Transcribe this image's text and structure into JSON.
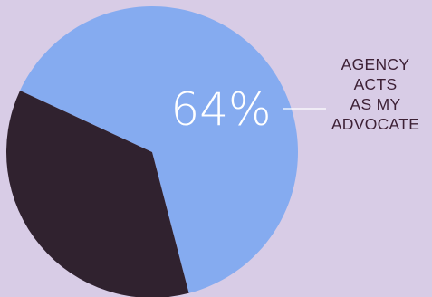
{
  "colors": {
    "background": "#d8cce6",
    "main_slice": "#85abf0",
    "other_slice": "#30222f",
    "label_text": "#3d2035",
    "percent_text": "#ffffff",
    "leader_line": "#ffffff"
  },
  "chart_data": {
    "type": "pie",
    "slices": [
      {
        "label": "AGENCY ACTS AS MY ADVOCATE",
        "value": 64,
        "color": "#85abf0",
        "display": "64%"
      },
      {
        "label": "",
        "value": 36,
        "color": "#30222f",
        "display": ""
      }
    ],
    "callout": {
      "percent_text": "64%",
      "label_lines": [
        "AGENCY",
        "ACTS",
        "AS MY",
        "ADVOCATE"
      ]
    }
  }
}
